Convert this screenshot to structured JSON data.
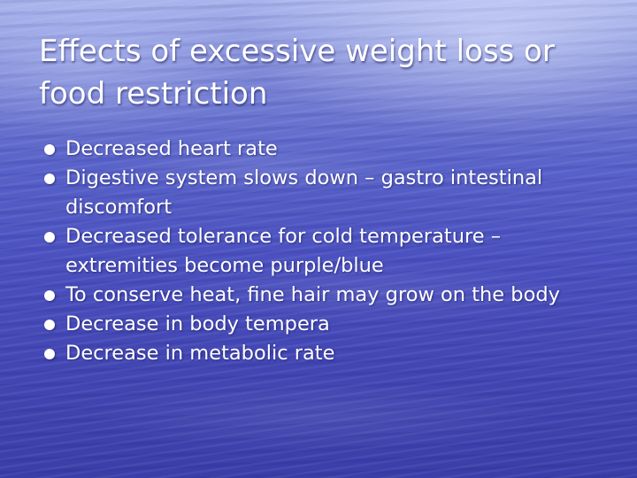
{
  "slide": {
    "title": "Effects of excessive weight loss or food restriction",
    "bullets": [
      "Decreased heart rate",
      "Digestive system slows down – gastro intestinal discomfort",
      "Decreased tolerance for cold temperature – extremities become purple/blue",
      "To conserve heat, fine hair may grow on the body",
      "Decrease in body tempera",
      "Decrease in metabolic rate"
    ]
  },
  "colors": {
    "background_top": "#aab4ec",
    "background_bottom": "#3b3ea8",
    "text": "#ffffff"
  }
}
